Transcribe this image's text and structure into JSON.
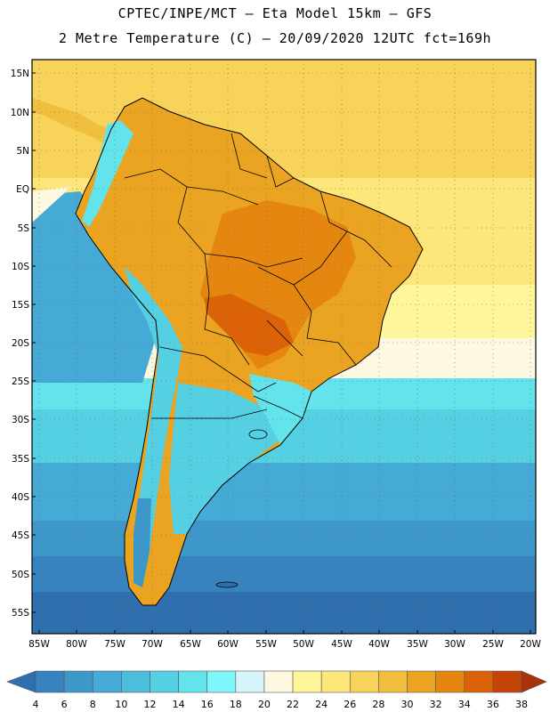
{
  "header": {
    "line1": "CPTEC/INPE/MCT —  Eta Model 15km — GFS",
    "line2": "2 Metre Temperature (C) — 20/09/2020 12UTC fct=169h"
  },
  "axes": {
    "lat_labels": [
      "15N",
      "10N",
      "5N",
      "EQ",
      "5S",
      "10S",
      "15S",
      "20S",
      "25S",
      "30S",
      "35S",
      "40S",
      "45S",
      "50S",
      "55S"
    ],
    "lon_labels": [
      "85W",
      "80W",
      "75W",
      "70W",
      "65W",
      "60W",
      "55W",
      "50W",
      "45W",
      "40W",
      "35W",
      "30W",
      "25W",
      "20W"
    ]
  },
  "colorbar": {
    "labels": [
      "4",
      "6",
      "8",
      "10",
      "12",
      "14",
      "16",
      "18",
      "20",
      "22",
      "24",
      "26",
      "28",
      "30",
      "32",
      "34",
      "36",
      "38"
    ],
    "colors": [
      "#2f6fad",
      "#3783bf",
      "#3d97c9",
      "#45aad5",
      "#4cbedc",
      "#55d0e3",
      "#63e3ec",
      "#7ff7fb",
      "#d6f5fb",
      "#fff8e0",
      "#fff59a",
      "#fde77a",
      "#f7d35a",
      "#f0bf3e",
      "#eaa421",
      "#e4860f",
      "#dc6208",
      "#c44307",
      "#a8320a"
    ]
  },
  "colors": {
    "ocean_south": "#2f6fad",
    "ocean_mid": "#45aad5",
    "ocean_cyan": "#55d0e3",
    "ocean_warm": "#fde77a",
    "ocean_north": "#f7d35a",
    "land_hot": "#eaa421",
    "land_very_hot": "#dc6208",
    "andes_cold": "#63e3ec"
  }
}
